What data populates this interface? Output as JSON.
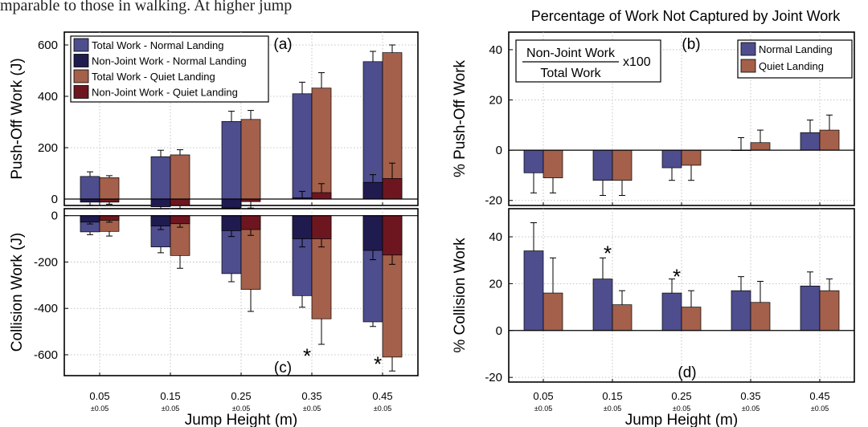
{
  "clipped_text": "mparable to those in walking. At higher jump",
  "colors": {
    "normal_total": "#4e4d8e",
    "normal_nonjoint": "#1f1b4f",
    "quiet_total": "#a4604a",
    "quiet_nonjoint": "#6e1620",
    "axis": "#000000",
    "grid": "#b4b4b4"
  },
  "chart_data": [
    {
      "id": "a",
      "type": "bar",
      "panel_label": "(a)",
      "title": "",
      "ylabel": "Push-Off Work (J)",
      "xlabel": "",
      "ylim": [
        -25,
        650
      ],
      "yticks": [
        0,
        200,
        400,
        600
      ],
      "categories": [
        "0.05",
        "0.15",
        "0.25",
        "0.35",
        "0.45"
      ],
      "grid": true,
      "legend": "top-left",
      "series": [
        {
          "name": "Total Work - Normal Landing",
          "color_key": "normal_total",
          "group": 0,
          "values": [
            88,
            165,
            302,
            410,
            535
          ],
          "errors": [
            18,
            25,
            40,
            45,
            40
          ]
        },
        {
          "name": "Non-Joint Work - Normal Landing",
          "color_key": "normal_nonjoint",
          "group": 0,
          "values": [
            -12,
            -30,
            -35,
            5,
            65
          ],
          "errors": [
            12,
            15,
            20,
            25,
            30
          ]
        },
        {
          "name": "Total Work - Quiet Landing",
          "color_key": "quiet_total",
          "group": 1,
          "values": [
            83,
            172,
            310,
            432,
            570
          ],
          "errors": [
            8,
            20,
            35,
            60,
            30
          ]
        },
        {
          "name": "Non-Joint Work - Quiet Landing",
          "color_key": "quiet_nonjoint",
          "group": 1,
          "values": [
            -12,
            -25,
            -10,
            25,
            80
          ],
          "errors": [
            8,
            12,
            25,
            35,
            60
          ]
        }
      ]
    },
    {
      "id": "b",
      "type": "bar",
      "panel_label": "(b)",
      "title": "Percentage of Work Not Captured by Joint Work",
      "ylabel": "% Push-Off Work",
      "xlabel": "",
      "ylim": [
        -22,
        47
      ],
      "yticks": [
        -20,
        0,
        20,
        40
      ],
      "categories": [
        "0.05",
        "0.15",
        "0.25",
        "0.35",
        "0.45"
      ],
      "grid": true,
      "legend": "top-right",
      "formula": {
        "numerator": "Non-Joint Work",
        "denominator": "Total Work",
        "suffix": "x100"
      },
      "series": [
        {
          "name": "Normal Landing",
          "color_key": "normal_total",
          "group": 0,
          "values": [
            -9,
            -12,
            -7,
            0,
            7
          ],
          "errors": [
            8,
            6,
            5,
            5,
            5
          ]
        },
        {
          "name": "Quiet Landing",
          "color_key": "quiet_total",
          "group": 1,
          "values": [
            -11,
            -12,
            -6,
            3,
            8
          ],
          "errors": [
            6,
            6,
            6,
            5,
            6
          ]
        }
      ]
    },
    {
      "id": "c",
      "type": "bar",
      "panel_label": "(c)",
      "title": "",
      "ylabel": "Collision Work (J)",
      "xlabel": "Jump Height (m)",
      "ylim": [
        -690,
        30
      ],
      "yticks": [
        0,
        -200,
        -400,
        -600
      ],
      "categories": [
        "0.05",
        "0.15",
        "0.25",
        "0.35",
        "0.45"
      ],
      "category_sublabels": [
        "±0.05",
        "±0.05",
        "±0.05",
        "±0.05",
        "±0.05"
      ],
      "grid": true,
      "series": [
        {
          "name": "Total Work - Normal Landing",
          "color_key": "normal_total",
          "group": 0,
          "values": [
            -70,
            -135,
            -250,
            -345,
            -458
          ],
          "errors": [
            12,
            25,
            35,
            50,
            20
          ]
        },
        {
          "name": "Non-Joint Work - Normal Landing",
          "color_key": "normal_nonjoint",
          "group": 0,
          "values": [
            -28,
            -45,
            -65,
            -100,
            -150
          ],
          "errors": [
            8,
            15,
            25,
            35,
            40
          ]
        },
        {
          "name": "Total Work - Quiet Landing",
          "color_key": "quiet_total",
          "group": 1,
          "values": [
            -68,
            -172,
            -318,
            -445,
            -610
          ],
          "errors": [
            20,
            55,
            95,
            110,
            60
          ]
        },
        {
          "name": "Non-Joint Work - Quiet Landing",
          "color_key": "quiet_nonjoint",
          "group": 1,
          "values": [
            -20,
            -35,
            -60,
            -100,
            -170
          ],
          "errors": [
            8,
            15,
            25,
            35,
            40
          ]
        }
      ],
      "annotations": [
        {
          "text": "*",
          "category_index": 3,
          "value": -595
        },
        {
          "text": "*",
          "category_index": 4,
          "value": -630
        }
      ]
    },
    {
      "id": "d",
      "type": "bar",
      "panel_label": "(d)",
      "title": "",
      "ylabel": "% Collision Work",
      "xlabel": "Jump Height (m)",
      "ylim": [
        -22,
        52
      ],
      "yticks": [
        -20,
        0,
        20,
        40
      ],
      "categories": [
        "0.05",
        "0.15",
        "0.25",
        "0.35",
        "0.45"
      ],
      "category_sublabels": [
        "±0.05",
        "±0.05",
        "±0.05",
        "±0.05",
        "±0.05"
      ],
      "grid": true,
      "series": [
        {
          "name": "Normal Landing",
          "color_key": "normal_total",
          "group": 0,
          "values": [
            34,
            22,
            16,
            17,
            19
          ],
          "errors": [
            12,
            9,
            6,
            6,
            6
          ]
        },
        {
          "name": "Quiet Landing",
          "color_key": "quiet_total",
          "group": 1,
          "values": [
            16,
            11,
            10,
            12,
            17
          ],
          "errors": [
            15,
            6,
            7,
            9,
            5
          ]
        }
      ],
      "annotations": [
        {
          "text": "*",
          "category_index": 1,
          "value": 34
        },
        {
          "text": "*",
          "category_index": 2,
          "value": 24
        }
      ]
    }
  ]
}
